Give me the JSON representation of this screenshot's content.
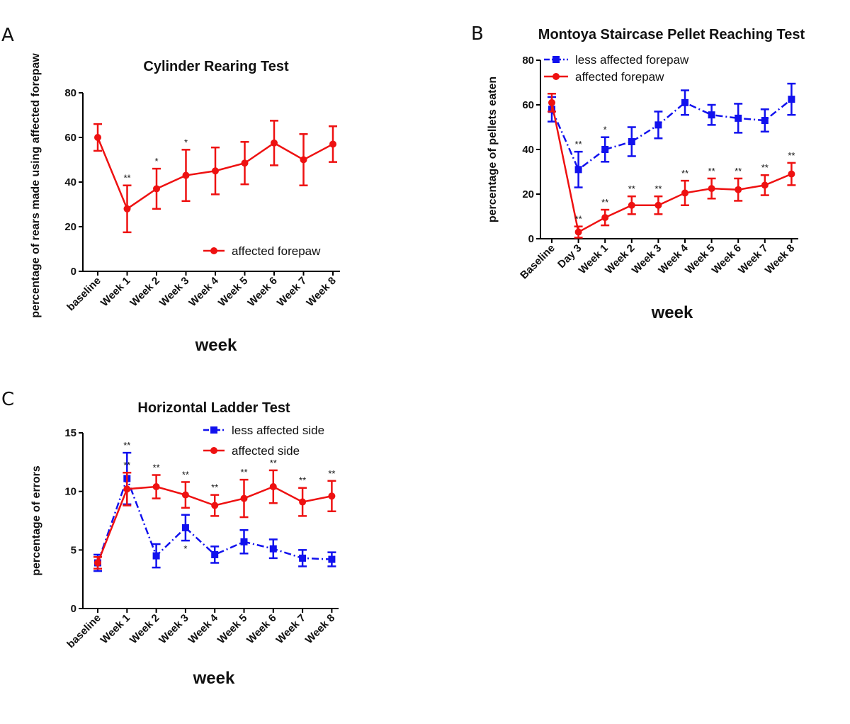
{
  "chart_data": [
    {
      "panel": "A",
      "type": "line",
      "title": "Cylinder Rearing Test",
      "xlabel": "week",
      "ylabel": "percentage of rears made using affected forepaw",
      "ylim": [
        0,
        80
      ],
      "yticks": [
        0,
        20,
        40,
        60,
        80
      ],
      "categories": [
        "baseline",
        "Week 1",
        "Week 2",
        "Week 3",
        "Week 4",
        "Week 5",
        "Week 6",
        "Week 7",
        "Week 8"
      ],
      "series": [
        {
          "name": "affected forepaw",
          "color": "#ee1111",
          "marker": "circle",
          "dashed": false,
          "values": [
            60,
            28,
            37,
            43,
            45,
            48.5,
            57.5,
            50,
            57
          ],
          "errors": [
            6,
            10.5,
            9,
            11.5,
            10.5,
            9.5,
            10,
            11.5,
            8
          ],
          "sig_above": [
            "",
            "**",
            "*",
            "*",
            "",
            "",
            "",
            "",
            ""
          ],
          "sig_below": [
            "",
            "",
            "",
            "",
            "",
            "",
            "",
            "",
            ""
          ]
        }
      ],
      "legend_position": "bottom-right"
    },
    {
      "panel": "B",
      "type": "line",
      "title": "Montoya Staircase Pellet Reaching Test",
      "xlabel": "week",
      "ylabel": "percentage of pellets eaten",
      "ylim": [
        0,
        80
      ],
      "yticks": [
        0,
        20,
        40,
        60,
        80
      ],
      "categories": [
        "Baseline",
        "Day 3",
        "Week 1",
        "Week 2",
        "Week 3",
        "Week 4",
        "Week 5",
        "Week 6",
        "Week 7",
        "Week 8"
      ],
      "series": [
        {
          "name": "less affected forepaw",
          "color": "#1111ee",
          "marker": "square",
          "dashed": true,
          "values": [
            58,
            31,
            40,
            43.5,
            51,
            61,
            55.5,
            54,
            53,
            62.5
          ],
          "errors": [
            5.5,
            8,
            5.5,
            6.5,
            6,
            5.5,
            4.5,
            6.5,
            5,
            7
          ],
          "sig_above": [
            "",
            "**",
            "*",
            "",
            "",
            "",
            "",
            "",
            "",
            ""
          ],
          "sig_below": [
            "",
            "",
            "",
            "",
            "",
            "",
            "",
            "",
            "",
            ""
          ]
        },
        {
          "name": "affected forepaw",
          "color": "#ee1111",
          "marker": "circle",
          "dashed": false,
          "values": [
            61,
            3,
            9.5,
            15,
            15,
            20.5,
            22.5,
            22,
            24,
            29
          ],
          "errors": [
            4,
            2.5,
            3.5,
            4,
            4,
            5.5,
            4.5,
            5,
            4.5,
            5
          ],
          "sig_above": [
            "",
            "**",
            "**",
            "**",
            "**",
            "**",
            "**",
            "**",
            "**",
            "**"
          ],
          "sig_below": [
            "",
            "",
            "",
            "",
            "",
            "",
            "",
            "",
            "",
            ""
          ]
        }
      ],
      "legend_position": "top-left"
    },
    {
      "panel": "C",
      "type": "line",
      "title": "Horizontal Ladder Test",
      "xlabel": "week",
      "ylabel": "percentage of errors",
      "ylim": [
        0,
        15
      ],
      "yticks": [
        0,
        5,
        10,
        15
      ],
      "categories": [
        "baseline",
        "Week 1",
        "Week 2",
        "Week 3",
        "Week 4",
        "Week 5",
        "Week 6",
        "Week 7",
        "Week 8"
      ],
      "series": [
        {
          "name": "less affected side",
          "color": "#1111ee",
          "marker": "square",
          "dashed": true,
          "values": [
            3.9,
            11.1,
            4.5,
            6.9,
            4.6,
            5.7,
            5.1,
            4.3,
            4.2
          ],
          "errors": [
            0.7,
            2.2,
            1,
            1.1,
            0.7,
            1,
            0.8,
            0.7,
            0.6
          ],
          "sig_above": [
            "",
            "**",
            "",
            "",
            "",
            "",
            "",
            "",
            ""
          ],
          "sig_below": [
            "",
            "",
            "",
            "*",
            "",
            "",
            "",
            "",
            ""
          ]
        },
        {
          "name": "affected side",
          "color": "#ee1111",
          "marker": "circle",
          "dashed": false,
          "values": [
            3.9,
            10.2,
            10.4,
            9.7,
            8.8,
            9.4,
            10.4,
            9.1,
            9.6
          ],
          "errors": [
            0.5,
            1.4,
            1,
            1.1,
            0.9,
            1.6,
            1.4,
            1.2,
            1.3
          ],
          "sig_above": [
            "",
            "**",
            "**",
            "**",
            "**",
            "**",
            "**",
            "**",
            "**"
          ],
          "sig_below": [
            "",
            "",
            "",
            "",
            "",
            "",
            "",
            "",
            ""
          ]
        }
      ],
      "legend_position": "top-right"
    }
  ]
}
